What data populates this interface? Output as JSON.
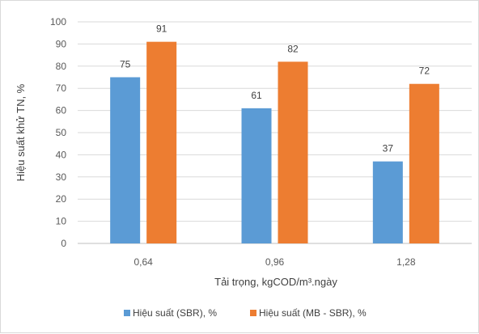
{
  "chart_data": {
    "type": "bar",
    "categories": [
      "0,64",
      "0,96",
      "1,28"
    ],
    "series": [
      {
        "name": "Hiệu suất (SBR), %",
        "values": [
          75,
          61,
          37
        ],
        "color": "#5b9bd5"
      },
      {
        "name": "Hiệu suất (MB - SBR), %",
        "values": [
          91,
          82,
          72
        ],
        "color": "#ed7d31"
      }
    ],
    "xlabel": "Tải trọng, kgCOD/m³.ngày",
    "ylabel": "Hiệu suất khử TN, %",
    "ylim": [
      0,
      100
    ],
    "yticks": [
      "0",
      "10",
      "20",
      "30",
      "40",
      "50",
      "60",
      "70",
      "80",
      "90",
      "100"
    ],
    "grid": true,
    "legend_position": "bottom"
  }
}
